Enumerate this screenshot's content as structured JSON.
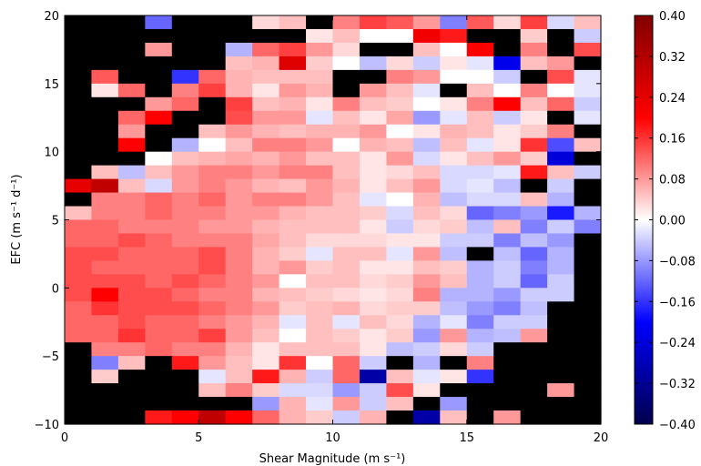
{
  "chart_data": {
    "type": "heatmap",
    "xlabel": "Shear Magnitude (m s⁻¹)",
    "ylabel": "EFC (m s⁻¹ d⁻¹)",
    "xlim": [
      0,
      20
    ],
    "ylim": [
      -10,
      20
    ],
    "x_ticks": [
      "0",
      "5",
      "10",
      "15",
      "20"
    ],
    "y_ticks": [
      "−10",
      "−5",
      "0",
      "5",
      "10",
      "15",
      "20"
    ],
    "grid": false,
    "x_bin_width": 1,
    "y_bin_width": 1,
    "missing_value_color": "#000000",
    "x_bins_left_edges": [
      0,
      1,
      2,
      3,
      4,
      5,
      6,
      7,
      8,
      9,
      10,
      11,
      12,
      13,
      14,
      15,
      16,
      17,
      18,
      19
    ],
    "y_bins_top_edges": [
      20,
      19,
      18,
      17,
      16,
      15,
      14,
      13,
      12,
      11,
      10,
      9,
      8,
      7,
      6,
      5,
      4,
      3,
      2,
      1,
      0,
      -1,
      -2,
      -3,
      -4,
      -5,
      -6,
      -7,
      -8,
      -9
    ],
    "z_rows_top_to_bottom": [
      [
        null,
        null,
        null,
        -0.12,
        null,
        null,
        null,
        0.03,
        0.05,
        null,
        0.1,
        0.15,
        0.13,
        0.08,
        -0.1,
        0.13,
        0.03,
        0.15,
        -0.03,
        0.05
      ],
      [
        null,
        null,
        null,
        null,
        null,
        null,
        null,
        null,
        null,
        0.02,
        0.05,
        0.0,
        0.0,
        0.22,
        0.18,
        null,
        null,
        0.04,
        null,
        -0.04
      ],
      [
        null,
        null,
        null,
        0.08,
        null,
        null,
        -0.06,
        0.12,
        0.15,
        0.08,
        0.03,
        null,
        null,
        0.05,
        0.0,
        0.2,
        null,
        0.1,
        null,
        0.14
      ],
      [
        null,
        null,
        null,
        null,
        null,
        null,
        0.05,
        0.06,
        0.25,
        0.04,
        0.0,
        -0.05,
        0.03,
        -0.04,
        0.02,
        -0.02,
        -0.22,
        0.05,
        0.08,
        null
      ],
      [
        null,
        0.13,
        null,
        null,
        -0.16,
        0.12,
        0.06,
        0.05,
        0.05,
        0.05,
        null,
        null,
        0.1,
        0.08,
        0.0,
        0.0,
        -0.04,
        null,
        0.14,
        -0.02
      ],
      [
        null,
        0.02,
        0.12,
        null,
        0.1,
        0.15,
        0.06,
        0.02,
        0.08,
        0.06,
        null,
        0.08,
        0.05,
        -0.02,
        null,
        0.05,
        0.0,
        0.1,
        0.0,
        -0.02
      ],
      [
        null,
        null,
        null,
        0.08,
        0.12,
        null,
        0.15,
        0.05,
        0.06,
        0.02,
        0.1,
        0.05,
        0.04,
        0.0,
        0.02,
        0.1,
        0.2,
        0.05,
        0.12,
        -0.04
      ],
      [
        null,
        null,
        0.12,
        0.2,
        null,
        null,
        0.14,
        0.08,
        0.08,
        -0.02,
        0.05,
        0.02,
        0.07,
        -0.08,
        -0.02,
        0.05,
        -0.04,
        0.02,
        null,
        -0.02
      ],
      [
        null,
        null,
        0.08,
        null,
        null,
        0.05,
        0.08,
        0.06,
        0.05,
        0.06,
        0.06,
        0.08,
        0.0,
        0.02,
        0.06,
        0.05,
        0.02,
        0.04,
        0.1,
        null
      ],
      [
        null,
        null,
        0.2,
        null,
        -0.06,
        0.0,
        0.05,
        0.1,
        0.1,
        0.08,
        0.0,
        0.06,
        0.05,
        -0.05,
        0.05,
        -0.02,
        0.02,
        0.16,
        -0.14,
        0.05
      ],
      [
        null,
        null,
        null,
        0.0,
        0.05,
        0.06,
        0.07,
        0.06,
        0.08,
        0.05,
        0.05,
        0.02,
        0.08,
        -0.03,
        0.02,
        0.05,
        0.08,
        0.04,
        -0.24,
        null
      ],
      [
        null,
        0.05,
        -0.05,
        0.05,
        0.08,
        0.1,
        0.1,
        0.08,
        0.1,
        0.1,
        0.05,
        0.02,
        0.03,
        0.05,
        -0.03,
        -0.03,
        -0.02,
        0.18,
        0.05,
        -0.04
      ],
      [
        0.24,
        0.3,
        0.05,
        -0.03,
        0.08,
        0.1,
        0.08,
        0.06,
        0.05,
        0.08,
        0.06,
        0.02,
        0.05,
        0.08,
        -0.03,
        -0.02,
        -0.05,
        null,
        -0.04,
        null
      ],
      [
        null,
        0.1,
        0.1,
        0.12,
        0.1,
        0.12,
        0.08,
        0.1,
        0.1,
        0.08,
        0.05,
        -0.02,
        0.0,
        0.06,
        -0.05,
        -0.03,
        -0.03,
        0.05,
        -0.06,
        null
      ],
      [
        0.05,
        0.1,
        0.1,
        0.12,
        0.1,
        0.1,
        0.08,
        0.08,
        0.06,
        0.05,
        0.05,
        0.04,
        -0.03,
        0.05,
        0.03,
        -0.12,
        -0.1,
        -0.08,
        -0.18,
        -0.06
      ],
      [
        0.12,
        0.12,
        0.1,
        0.1,
        0.1,
        0.08,
        0.08,
        0.06,
        0.05,
        0.05,
        0.05,
        0.02,
        -0.04,
        0.03,
        0.04,
        -0.05,
        0.05,
        -0.1,
        -0.04,
        -0.1
      ],
      [
        0.12,
        0.12,
        0.14,
        0.12,
        0.1,
        0.1,
        0.1,
        0.07,
        0.05,
        0.03,
        0.03,
        0.03,
        0.02,
        0.02,
        -0.04,
        -0.04,
        -0.1,
        -0.05,
        -0.08,
        null
      ],
      [
        0.14,
        0.14,
        0.12,
        0.12,
        0.12,
        0.14,
        0.1,
        0.06,
        0.04,
        -0.02,
        0.05,
        0.05,
        -0.02,
        0.08,
        -0.05,
        null,
        -0.05,
        -0.12,
        -0.06,
        null
      ],
      [
        0.14,
        0.12,
        0.12,
        0.12,
        0.12,
        0.14,
        0.1,
        0.06,
        0.08,
        0.04,
        0.05,
        0.02,
        0.02,
        0.05,
        0.04,
        -0.06,
        -0.04,
        -0.1,
        -0.06,
        null
      ],
      [
        0.14,
        0.14,
        0.14,
        0.12,
        0.14,
        0.12,
        0.1,
        0.08,
        0.0,
        0.05,
        0.05,
        0.03,
        0.04,
        0.08,
        0.05,
        -0.06,
        -0.04,
        -0.12,
        -0.04,
        null
      ],
      [
        0.14,
        0.2,
        0.14,
        0.14,
        0.12,
        0.1,
        0.1,
        0.06,
        0.05,
        0.04,
        0.03,
        0.02,
        0.03,
        0.1,
        -0.06,
        -0.06,
        -0.08,
        -0.04,
        -0.04,
        null
      ],
      [
        0.12,
        0.16,
        0.14,
        0.14,
        0.14,
        0.12,
        0.1,
        0.08,
        0.04,
        0.05,
        0.06,
        0.03,
        0.04,
        0.04,
        -0.05,
        -0.08,
        -0.1,
        -0.05,
        null,
        null
      ],
      [
        0.12,
        0.12,
        0.14,
        0.12,
        0.12,
        0.1,
        0.08,
        0.06,
        -0.02,
        0.05,
        -0.02,
        0.05,
        0.03,
        -0.06,
        -0.02,
        -0.1,
        -0.04,
        -0.04,
        null,
        null
      ],
      [
        0.12,
        0.12,
        0.16,
        0.12,
        0.12,
        0.15,
        0.08,
        0.05,
        0.0,
        0.05,
        0.04,
        0.02,
        0.04,
        -0.08,
        0.08,
        -0.06,
        -0.05,
        0.08,
        null,
        null
      ],
      [
        null,
        0.1,
        0.1,
        0.12,
        0.1,
        0.1,
        0.06,
        0.02,
        0.05,
        0.05,
        0.05,
        0.02,
        -0.05,
        -0.04,
        0.03,
        -0.04,
        null,
        null,
        null,
        null
      ],
      [
        null,
        -0.1,
        0.05,
        null,
        0.18,
        0.08,
        0.05,
        0.02,
        0.16,
        0.0,
        0.12,
        -0.04,
        null,
        -0.06,
        null,
        0.1,
        null,
        null,
        null,
        null
      ],
      [
        null,
        0.04,
        null,
        null,
        null,
        -0.02,
        0.05,
        0.18,
        0.06,
        -0.04,
        0.12,
        -0.3,
        0.05,
        -0.02,
        0.02,
        -0.16,
        null,
        null,
        null,
        null
      ],
      [
        null,
        null,
        null,
        null,
        null,
        0.05,
        0.1,
        0.04,
        -0.03,
        -0.03,
        -0.08,
        -0.04,
        0.14,
        0.02,
        null,
        null,
        null,
        null,
        0.08,
        null
      ],
      [
        null,
        null,
        null,
        null,
        null,
        null,
        null,
        -0.08,
        0.06,
        -0.02,
        0.08,
        -0.04,
        0.05,
        null,
        -0.08,
        null,
        null,
        null,
        null,
        null
      ],
      [
        null,
        null,
        null,
        0.18,
        0.2,
        0.3,
        0.2,
        0.12,
        0.06,
        0.04,
        -0.04,
        0.06,
        null,
        -0.3,
        0.05,
        null,
        0.08,
        null,
        null,
        null
      ]
    ],
    "colorbar": {
      "colormap": "seismic",
      "range": [
        -0.4,
        0.4
      ],
      "ticks": [
        "0.40",
        "0.32",
        "0.24",
        "0.16",
        "0.08",
        "0.00",
        "−0.08",
        "−0.16",
        "−0.24",
        "−0.32",
        "−0.40"
      ]
    }
  }
}
